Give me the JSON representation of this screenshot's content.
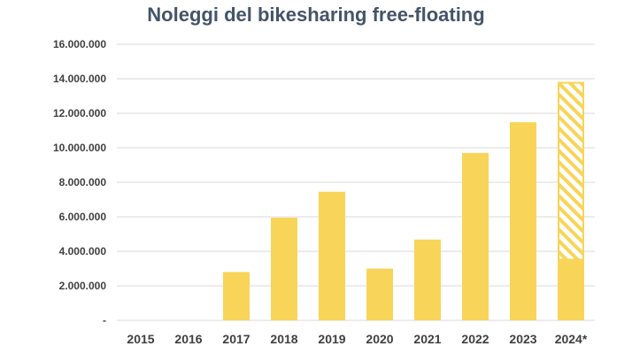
{
  "chart_data": {
    "type": "bar",
    "title": "Noleggi del bikesharing free-floating",
    "categories": [
      "2015",
      "2016",
      "2017",
      "2018",
      "2019",
      "2020",
      "2021",
      "2022",
      "2023",
      "2024*"
    ],
    "series": [
      {
        "values": [
          0,
          0,
          2800000,
          5950000,
          7450000,
          3000000,
          4680000,
          9700000,
          11480000,
          3520000
        ]
      },
      {
        "values": [
          0,
          0,
          0,
          0,
          0,
          0,
          0,
          0,
          0,
          10300000
        ],
        "pattern": "hatched",
        "stacked_on": 0
      }
    ],
    "yticks": [
      "-",
      "2.000.000",
      "4.000.000",
      "6.000.000",
      "8.000.000",
      "10.000.000",
      "12.000.000",
      "14.000.000",
      "16.000.000"
    ],
    "ylim": [
      0,
      16000000
    ],
    "grid": true,
    "colors": {
      "bar": "#f8d458",
      "hatch": "#f8d458",
      "grid": "#d9d9d9",
      "title": "#44546a",
      "text": "#404040"
    }
  }
}
